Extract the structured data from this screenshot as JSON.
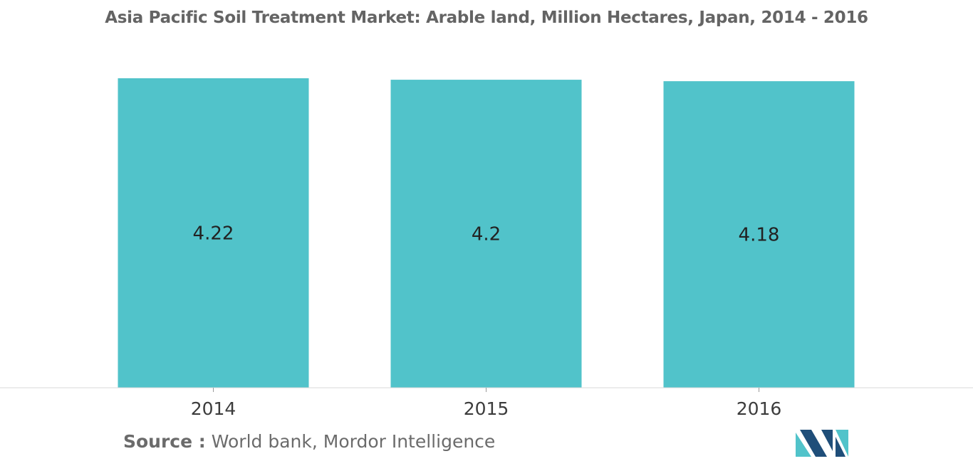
{
  "chart_data": {
    "type": "bar",
    "title": "Asia Pacific Soil Treatment Market: Arable land, Million Hectares, Japan, 2014 - 2016",
    "categories": [
      "2014",
      "2015",
      "2016"
    ],
    "values": [
      4.22,
      4.2,
      4.18
    ],
    "data_labels": [
      "4.22",
      "4.2",
      "4.18"
    ],
    "xlabel": "",
    "ylabel": "",
    "ylim": [
      0,
      4.22
    ],
    "grid": false,
    "legend": "none",
    "bar_color": "#51C3CA"
  },
  "source": {
    "label": "Source :",
    "text": "World bank, Mordor Intelligence"
  },
  "logo": {
    "icon": "mordor-intelligence-logo-icon",
    "colors": [
      "#1F4E79",
      "#51C3CA"
    ]
  }
}
